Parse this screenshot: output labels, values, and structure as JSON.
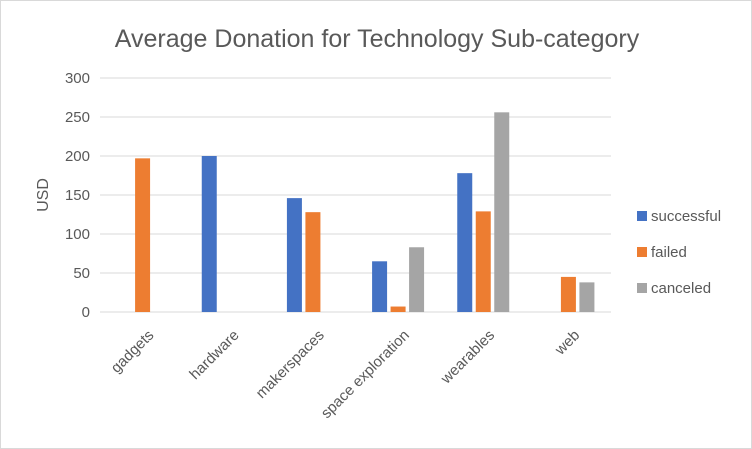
{
  "chart_data": {
    "type": "bar",
    "title": "Average Donation for Technology Sub-category",
    "xlabel": "",
    "ylabel": "USD",
    "ylim": [
      0,
      300
    ],
    "yticks": [
      0,
      50,
      100,
      150,
      200,
      250,
      300
    ],
    "grid": true,
    "legend_position": "right",
    "categories": [
      "gadgets",
      "hardware",
      "makerspaces",
      "space exploration",
      "wearables",
      "web"
    ],
    "series": [
      {
        "name": "successful",
        "color": "#4472C4",
        "values": [
          null,
          200,
          146,
          65,
          178,
          null
        ]
      },
      {
        "name": "failed",
        "color": "#ED7D31",
        "values": [
          197,
          null,
          128,
          7,
          129,
          45
        ]
      },
      {
        "name": "canceled",
        "color": "#A5A5A5",
        "values": [
          null,
          null,
          null,
          83,
          256,
          38
        ]
      }
    ]
  }
}
